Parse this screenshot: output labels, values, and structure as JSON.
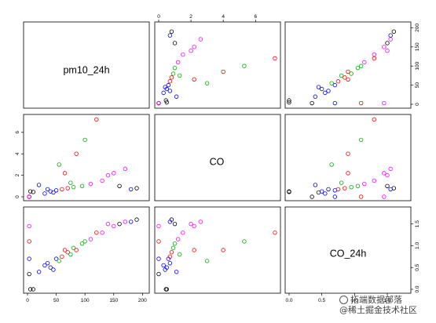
{
  "chart_data": {
    "type": "scatter",
    "variables": [
      "pm10_24h",
      "CO",
      "CO_24h"
    ],
    "axes": {
      "pm10_24h": {
        "range": [
          0,
          205
        ],
        "ticks": [
          0,
          50,
          100,
          150,
          200
        ]
      },
      "CO": {
        "range": [
          0,
          7.3
        ],
        "ticks": [
          0,
          2,
          4,
          6
        ]
      },
      "CO_24h": {
        "range": [
          0,
          1.8
        ],
        "ticks": [
          0.0,
          0.5,
          1.0,
          1.5
        ]
      }
    },
    "group_colors": [
      "#0000ff",
      "#ff0000",
      "#00b000",
      "#ff00ff",
      "#000000"
    ],
    "marker": "open-circle",
    "panels": [
      {
        "x": "CO",
        "y": "pm10_24h"
      },
      {
        "x": "CO_24h",
        "y": "pm10_24h"
      },
      {
        "x": "pm10_24h",
        "y": "CO"
      },
      {
        "x": "CO_24h",
        "y": "CO"
      },
      {
        "x": "pm10_24h",
        "y": "CO_24h"
      },
      {
        "x": "CO",
        "y": "CO_24h"
      }
    ],
    "points": [
      {
        "pm10_24h": 10,
        "CO": 0.45,
        "CO_24h": 0.0,
        "group": 4
      },
      {
        "pm10_24h": 5,
        "CO": 0.5,
        "CO_24h": 0.0,
        "group": 4
      },
      {
        "pm10_24h": 3,
        "CO": 0.0,
        "CO_24h": 0.35,
        "group": 4
      },
      {
        "pm10_24h": 3,
        "CO": 0.0,
        "CO_24h": 0.7,
        "group": 0
      },
      {
        "pm10_24h": 3,
        "CO": 0.0,
        "CO_24h": 1.1,
        "group": 1
      },
      {
        "pm10_24h": 3,
        "CO": 0.0,
        "CO_24h": 1.45,
        "group": 3
      },
      {
        "pm10_24h": 30,
        "CO": 0.3,
        "CO_24h": 0.55,
        "group": 0
      },
      {
        "pm10_24h": 40,
        "CO": 0.5,
        "CO_24h": 0.5,
        "group": 0
      },
      {
        "pm10_24h": 50,
        "CO": 0.6,
        "CO_24h": 0.7,
        "group": 0
      },
      {
        "pm10_24h": 60,
        "CO": 0.7,
        "CO_24h": 0.75,
        "group": 1
      },
      {
        "pm10_24h": 70,
        "CO": 0.8,
        "CO_24h": 0.85,
        "group": 1
      },
      {
        "pm10_24h": 80,
        "CO": 0.9,
        "CO_24h": 0.95,
        "group": 2
      },
      {
        "pm10_24h": 95,
        "CO": 1.0,
        "CO_24h": 1.05,
        "group": 2
      },
      {
        "pm10_24h": 110,
        "CO": 1.2,
        "CO_24h": 1.15,
        "group": 3
      },
      {
        "pm10_24h": 130,
        "CO": 1.5,
        "CO_24h": 1.3,
        "group": 3
      },
      {
        "pm10_24h": 150,
        "CO": 2.2,
        "CO_24h": 1.45,
        "group": 3
      },
      {
        "pm10_24h": 170,
        "CO": 2.6,
        "CO_24h": 1.55,
        "group": 3
      },
      {
        "pm10_24h": 190,
        "CO": 0.8,
        "CO_24h": 1.6,
        "group": 4
      },
      {
        "pm10_24h": 120,
        "CO": 7.2,
        "CO_24h": 1.3,
        "group": 1
      },
      {
        "pm10_24h": 100,
        "CO": 5.3,
        "CO_24h": 1.1,
        "group": 2
      },
      {
        "pm10_24h": 85,
        "CO": 4.0,
        "CO_24h": 0.9,
        "group": 1
      },
      {
        "pm10_24h": 55,
        "CO": 3.0,
        "CO_24h": 0.65,
        "group": 2
      },
      {
        "pm10_24h": 140,
        "CO": 2.0,
        "CO_24h": 1.5,
        "group": 3
      },
      {
        "pm10_24h": 20,
        "CO": 1.1,
        "CO_24h": 0.4,
        "group": 0
      },
      {
        "pm10_24h": 45,
        "CO": 0.4,
        "CO_24h": 0.45,
        "group": 0
      },
      {
        "pm10_24h": 75,
        "CO": 1.3,
        "CO_24h": 0.8,
        "group": 2
      },
      {
        "pm10_24h": 160,
        "CO": 1.0,
        "CO_24h": 1.5,
        "group": 4
      },
      {
        "pm10_24h": 180,
        "CO": 0.7,
        "CO_24h": 1.55,
        "group": 0
      },
      {
        "pm10_24h": 65,
        "CO": 2.2,
        "CO_24h": 0.9,
        "group": 1
      },
      {
        "pm10_24h": 35,
        "CO": 0.7,
        "CO_24h": 0.6,
        "group": 0
      }
    ]
  },
  "watermark": {
    "line1": "拓端数据部落",
    "line2": "@稀土掘金技术社区"
  }
}
